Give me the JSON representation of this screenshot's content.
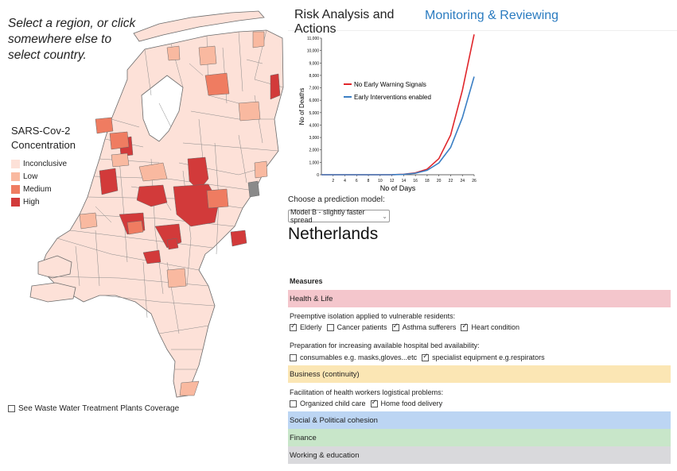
{
  "instruction": "Select a region, or click somewhere else to select country.",
  "legend": {
    "title": "SARS-Cov-2 Concentration",
    "items": [
      {
        "label": "Inconclusive",
        "color": "#fde1d8"
      },
      {
        "label": "Low",
        "color": "#f9b9a0"
      },
      {
        "label": "Medium",
        "color": "#ef7c61"
      },
      {
        "label": "High",
        "color": "#d23a3a"
      }
    ]
  },
  "wwtp_label": "See Waste Water Treatment Plants Coverage",
  "tabs": [
    {
      "label": "Risk Analysis and Actions"
    },
    {
      "label": "Monitoring & Reviewing"
    }
  ],
  "chart_data": {
    "type": "line",
    "title": "",
    "xlabel": "No of Days",
    "ylabel": "No of Deaths",
    "x_ticks": [
      2,
      4,
      6,
      8,
      10,
      12,
      14,
      16,
      18,
      20,
      22,
      24,
      26
    ],
    "y_ticks": [
      "0",
      "1,000",
      "2,000",
      "3,000",
      "4,000",
      "5,000",
      "6,000",
      "7,000",
      "8,000",
      "9,000",
      "10,000",
      "11,000"
    ],
    "xlim": [
      0,
      26
    ],
    "ylim": [
      0,
      11000
    ],
    "legend_position": "top-left",
    "series": [
      {
        "name": "No Early Warning Signals",
        "color": "#e0262b",
        "x": [
          0,
          2,
          4,
          6,
          8,
          10,
          12,
          14,
          16,
          18,
          20,
          22,
          24,
          26
        ],
        "values": [
          0,
          0,
          0,
          0,
          0,
          0,
          5,
          40,
          150,
          450,
          1300,
          3200,
          6800,
          11300
        ]
      },
      {
        "name": "Early Interventions enabled",
        "color": "#3b7fc4",
        "x": [
          0,
          2,
          4,
          6,
          8,
          10,
          12,
          14,
          16,
          18,
          20,
          22,
          24,
          26
        ],
        "values": [
          0,
          0,
          0,
          0,
          0,
          0,
          4,
          30,
          120,
          360,
          950,
          2200,
          4600,
          7900
        ]
      }
    ]
  },
  "model": {
    "label": "Choose a prediction model:",
    "selected": "Model B - slightly faster spread"
  },
  "country": "Netherlands",
  "measures": {
    "title": "Measures",
    "categories": [
      {
        "label": "Health & Life",
        "color": "#f4c6cc"
      },
      {
        "label": "Business (continuity)",
        "color": "#fbe6b4"
      },
      {
        "label": "Social & Political cohesion",
        "color": "#bcd5f3"
      },
      {
        "label": "Finance",
        "color": "#c8e6c9"
      },
      {
        "label": "Working & education",
        "color": "#d9d9dc"
      }
    ],
    "isolation": {
      "label": "Preemptive isolation applied to vulnerable residents:",
      "options": [
        {
          "label": "Elderly",
          "checked": true
        },
        {
          "label": "Cancer patients",
          "checked": false
        },
        {
          "label": "Asthma sufferers",
          "checked": true
        },
        {
          "label": "Heart condition",
          "checked": true
        }
      ]
    },
    "beds": {
      "label": "Preparation for increasing available hospital bed availability:",
      "options": [
        {
          "label": "consumables e.g. masks,gloves...etc",
          "checked": false
        },
        {
          "label": "specialist equipment e.g.respirators",
          "checked": true
        }
      ]
    },
    "logistics": {
      "label": "Facilitation of health workers logistical problems:",
      "options": [
        {
          "label": "Organized child care",
          "checked": false
        },
        {
          "label": "Home food delivery",
          "checked": true
        }
      ]
    }
  }
}
